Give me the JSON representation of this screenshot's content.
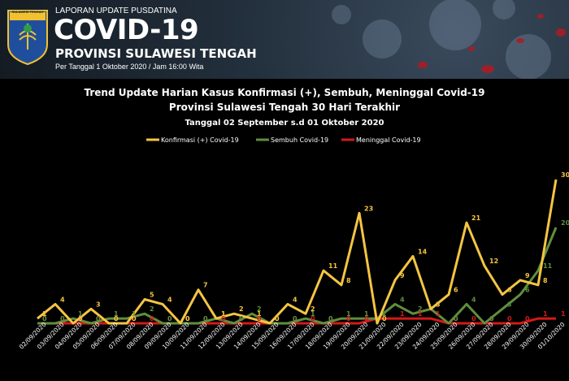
{
  "header": {
    "org_label": "SULAWESI TENGAH",
    "report_label": "LAPORAN UPDATE PUSDATINA",
    "big_title": "COVID-19",
    "province": "PROVINSI SULAWESI TENGAH",
    "date_line": "Per Tanggal 1 Oktober 2020 / Jam 16:00 Wita"
  },
  "chart_data": {
    "type": "line",
    "title": "Trend Update Harian Kasus Konfirmasi (+), Sembuh, Meninggal Covid-19",
    "subtitle": "Provinsi Sulawesi Tengah 30 Hari Terakhir",
    "subtitle2": "Tanggal 02 September s.d 01 Oktober 2020",
    "legend_position": "top-center",
    "grid": false,
    "ylim": [
      0,
      30
    ],
    "categories": [
      "02/09/2020",
      "03/09/2020",
      "04/09/2020",
      "05/09/2020",
      "06/09/2020",
      "07/09/2020",
      "08/09/2020",
      "09/09/2020",
      "10/09/2020",
      "11/09/2020",
      "12/09/2020",
      "13/09/2020",
      "14/09/2020",
      "15/09/2020",
      "16/09/2020",
      "17/09/2020",
      "18/09/2020",
      "19/09/2020",
      "20/09/2020",
      "21/09/2020",
      "22/09/2020",
      "23/09/2020",
      "24/09/2020",
      "25/09/2020",
      "26/09/2020",
      "27/09/2020",
      "28/09/2020",
      "29/09/2020",
      "30/09/2020",
      "01/10/2020"
    ],
    "series": [
      {
        "name": "Konfirmasi (+) Covid-19",
        "color": "#f4c542",
        "values": [
          1,
          4,
          0,
          3,
          0,
          0,
          5,
          4,
          0,
          7,
          1,
          2,
          1,
          0,
          4,
          2,
          11,
          8,
          23,
          0,
          9,
          14,
          3,
          6,
          21,
          12,
          6,
          9,
          8,
          30
        ]
      },
      {
        "name": "Sembuh Covid-19",
        "color": "#5f8f3e",
        "values": [
          0,
          0,
          1,
          0,
          1,
          1,
          2,
          0,
          0,
          0,
          1,
          0,
          2,
          0,
          0,
          1,
          0,
          1,
          1,
          1,
          4,
          2,
          3,
          0,
          4,
          0,
          3,
          6,
          11,
          20
        ]
      },
      {
        "name": "Meninggal Covid-19",
        "color": "#d31a1a",
        "values": [
          0,
          0,
          0,
          0,
          0,
          0,
          0,
          0,
          0,
          0,
          0,
          0,
          0,
          0,
          0,
          0,
          0,
          0,
          0,
          1,
          1,
          1,
          1,
          0,
          0,
          0,
          0,
          0,
          1,
          1
        ]
      }
    ]
  }
}
